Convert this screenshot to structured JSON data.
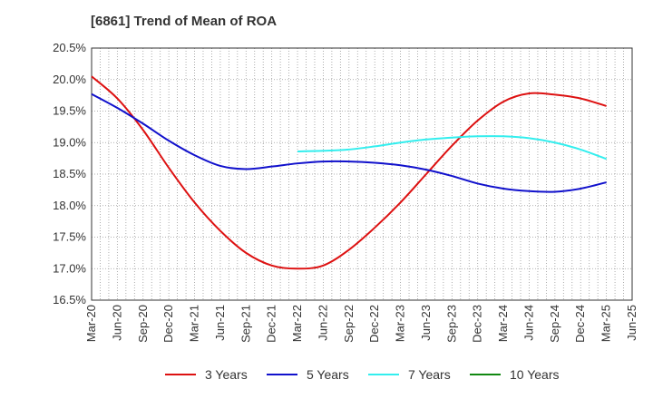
{
  "chart_data": {
    "type": "line",
    "title": "[6861]  Trend of Mean of ROA",
    "xlabel": "",
    "ylabel": "",
    "ylim": [
      16.5,
      20.5
    ],
    "yticks": [
      16.5,
      17.0,
      17.5,
      18.0,
      18.5,
      19.0,
      19.5,
      20.0,
      20.5
    ],
    "ytick_labels": [
      "16.5%",
      "17.0%",
      "17.5%",
      "18.0%",
      "18.5%",
      "19.0%",
      "19.5%",
      "20.0%",
      "20.5%"
    ],
    "categories": [
      "Mar-20",
      "Jun-20",
      "Sep-20",
      "Dec-20",
      "Mar-21",
      "Jun-21",
      "Sep-21",
      "Dec-21",
      "Mar-22",
      "Jun-22",
      "Sep-22",
      "Dec-22",
      "Mar-23",
      "Jun-23",
      "Sep-23",
      "Dec-23",
      "Mar-24",
      "Jun-24",
      "Sep-24",
      "Dec-24",
      "Mar-25",
      "Jun-25"
    ],
    "grid": true,
    "legend_position": "bottom",
    "series": [
      {
        "name": "3 Years",
        "color": "#dd1111",
        "values": [
          20.05,
          19.7,
          19.2,
          18.6,
          18.05,
          17.6,
          17.25,
          17.05,
          17.0,
          17.05,
          17.3,
          17.65,
          18.05,
          18.5,
          18.95,
          19.35,
          19.65,
          19.78,
          19.76,
          19.7,
          19.58,
          null
        ]
      },
      {
        "name": "5 Years",
        "color": "#1111cc",
        "values": [
          19.77,
          19.55,
          19.3,
          19.03,
          18.8,
          18.63,
          18.58,
          18.62,
          18.67,
          18.7,
          18.7,
          18.68,
          18.64,
          18.57,
          18.47,
          18.35,
          18.27,
          18.23,
          18.22,
          18.27,
          18.37,
          null
        ]
      },
      {
        "name": "7 Years",
        "color": "#33eeee",
        "values": [
          null,
          null,
          null,
          null,
          null,
          null,
          null,
          null,
          18.86,
          18.87,
          18.89,
          18.94,
          19.0,
          19.05,
          19.08,
          19.1,
          19.1,
          19.07,
          19.0,
          18.89,
          18.74,
          null
        ]
      },
      {
        "name": "10 Years",
        "color": "#118811",
        "values": [
          null,
          null,
          null,
          null,
          null,
          null,
          null,
          null,
          null,
          null,
          null,
          null,
          null,
          null,
          null,
          null,
          null,
          null,
          null,
          null,
          null,
          null
        ]
      }
    ]
  }
}
